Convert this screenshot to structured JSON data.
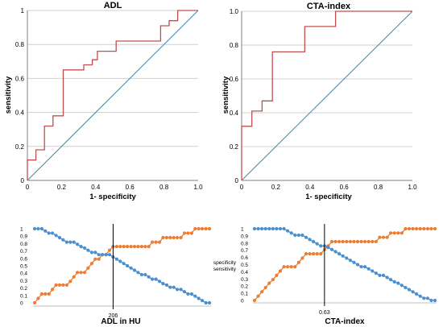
{
  "chart_data": [
    {
      "type": "line",
      "title": "ADL",
      "xlabel": "1- specificity",
      "ylabel": "sensitivity",
      "xlim": [
        0,
        1
      ],
      "ylim": [
        0,
        1
      ],
      "grid": "horizontal",
      "xticks": [
        "0",
        "0.2",
        "0.4",
        "0.6",
        "0.8",
        "1.0"
      ],
      "yticks": [
        "0",
        "0.2",
        "0.4",
        "0.6",
        "0.8",
        "1"
      ],
      "roc_points": [
        [
          0,
          0
        ],
        [
          0,
          0.12
        ],
        [
          0.05,
          0.12
        ],
        [
          0.05,
          0.18
        ],
        [
          0.1,
          0.18
        ],
        [
          0.1,
          0.32
        ],
        [
          0.15,
          0.32
        ],
        [
          0.15,
          0.38
        ],
        [
          0.21,
          0.38
        ],
        [
          0.21,
          0.65
        ],
        [
          0.33,
          0.65
        ],
        [
          0.33,
          0.68
        ],
        [
          0.38,
          0.68
        ],
        [
          0.38,
          0.71
        ],
        [
          0.41,
          0.71
        ],
        [
          0.41,
          0.76
        ],
        [
          0.52,
          0.76
        ],
        [
          0.52,
          0.82
        ],
        [
          0.78,
          0.82
        ],
        [
          0.78,
          0.91
        ],
        [
          0.83,
          0.91
        ],
        [
          0.83,
          0.94
        ],
        [
          0.88,
          0.94
        ],
        [
          0.88,
          1.0
        ],
        [
          1,
          1
        ]
      ],
      "reference_line": [
        [
          0,
          0
        ],
        [
          1,
          1
        ]
      ],
      "colors": {
        "roc": "#c0504d",
        "reference": "#4a8fb0",
        "grid": "#d0d0d0"
      }
    },
    {
      "type": "line",
      "title": "CTA-index",
      "xlabel": "1- specificity",
      "ylabel": "sensitivity",
      "xlim": [
        0,
        1
      ],
      "ylim": [
        0,
        1
      ],
      "grid": "horizontal",
      "xticks": [
        "0",
        "0.2",
        "0.4",
        "0.6",
        "0.8",
        "1.0"
      ],
      "yticks": [
        "0",
        "0.2",
        "0.4",
        "0.6",
        "0.8",
        "1.0"
      ],
      "roc_points": [
        [
          0,
          0
        ],
        [
          0,
          0.32
        ],
        [
          0.06,
          0.32
        ],
        [
          0.06,
          0.41
        ],
        [
          0.12,
          0.41
        ],
        [
          0.12,
          0.47
        ],
        [
          0.18,
          0.47
        ],
        [
          0.18,
          0.76
        ],
        [
          0.37,
          0.76
        ],
        [
          0.37,
          0.91
        ],
        [
          0.55,
          0.91
        ],
        [
          0.55,
          1.0
        ],
        [
          1,
          1
        ]
      ],
      "reference_line": [
        [
          0,
          0
        ],
        [
          1,
          1
        ]
      ],
      "colors": {
        "roc": "#c0504d",
        "reference": "#4a8fb0",
        "grid": "#d0d0d0"
      }
    },
    {
      "type": "line",
      "title": "",
      "xlabel": "ADL in HU",
      "ylabel": "",
      "ylim": [
        0,
        1
      ],
      "yticks": [
        "0",
        "0.1",
        "0.2",
        "0.3",
        "0.4",
        "0.5",
        "0.6",
        "0.7",
        "0.8",
        "0.9",
        "1"
      ],
      "cutoff_label": "206",
      "cutoff_index": 22,
      "n_points": 50,
      "series": [
        {
          "name": "specificity",
          "values": [
            0.0,
            0.06,
            0.12,
            0.12,
            0.12,
            0.18,
            0.24,
            0.24,
            0.24,
            0.24,
            0.29,
            0.35,
            0.41,
            0.41,
            0.41,
            0.47,
            0.53,
            0.59,
            0.59,
            0.65,
            0.65,
            0.71,
            0.76,
            0.76,
            0.76,
            0.76,
            0.76,
            0.76,
            0.76,
            0.76,
            0.76,
            0.76,
            0.76,
            0.82,
            0.82,
            0.82,
            0.88,
            0.88,
            0.88,
            0.88,
            0.88,
            0.88,
            0.94,
            0.94,
            0.94,
            1.0,
            1.0,
            1.0,
            1.0,
            1.0
          ]
        },
        {
          "name": "sensitivity",
          "values": [
            1.0,
            1.0,
            1.0,
            0.97,
            0.94,
            0.94,
            0.91,
            0.88,
            0.85,
            0.82,
            0.82,
            0.82,
            0.79,
            0.76,
            0.74,
            0.71,
            0.68,
            0.68,
            0.65,
            0.65,
            0.65,
            0.65,
            0.62,
            0.59,
            0.56,
            0.53,
            0.5,
            0.47,
            0.44,
            0.41,
            0.38,
            0.38,
            0.35,
            0.32,
            0.32,
            0.29,
            0.26,
            0.24,
            0.21,
            0.21,
            0.18,
            0.18,
            0.15,
            0.12,
            0.12,
            0.09,
            0.06,
            0.03,
            0.0,
            0.0
          ]
        }
      ],
      "colors": {
        "specificity": "#ed7d31",
        "sensitivity": "#4a8fd0",
        "cutoff": "#000000"
      }
    },
    {
      "type": "line",
      "title": "",
      "xlabel": "CTA-index",
      "ylabel": "",
      "ylim": [
        0,
        1
      ],
      "yticks": [
        "0",
        "0.1",
        "0.2",
        "0.3",
        "0.4",
        "0.5",
        "0.6",
        "0.7",
        "0.8",
        "0.9",
        "1"
      ],
      "cutoff_label": "0.63",
      "cutoff_index": 19,
      "n_points": 50,
      "series": [
        {
          "name": "specificity",
          "values": [
            0.0,
            0.06,
            0.12,
            0.18,
            0.24,
            0.29,
            0.35,
            0.41,
            0.47,
            0.47,
            0.47,
            0.47,
            0.53,
            0.59,
            0.65,
            0.65,
            0.65,
            0.65,
            0.65,
            0.71,
            0.76,
            0.82,
            0.82,
            0.82,
            0.82,
            0.82,
            0.82,
            0.82,
            0.82,
            0.82,
            0.82,
            0.82,
            0.82,
            0.82,
            0.88,
            0.88,
            0.88,
            0.94,
            0.94,
            0.94,
            0.94,
            1.0,
            1.0,
            1.0,
            1.0,
            1.0,
            1.0,
            1.0,
            1.0,
            1.0
          ]
        },
        {
          "name": "sensitivity",
          "values": [
            1.0,
            1.0,
            1.0,
            1.0,
            1.0,
            1.0,
            1.0,
            1.0,
            1.0,
            0.97,
            0.94,
            0.91,
            0.91,
            0.91,
            0.88,
            0.85,
            0.82,
            0.79,
            0.76,
            0.76,
            0.74,
            0.71,
            0.68,
            0.65,
            0.62,
            0.59,
            0.56,
            0.53,
            0.5,
            0.47,
            0.47,
            0.44,
            0.41,
            0.38,
            0.35,
            0.35,
            0.32,
            0.29,
            0.26,
            0.24,
            0.21,
            0.18,
            0.15,
            0.12,
            0.09,
            0.06,
            0.03,
            0.03,
            0.0,
            0.0
          ]
        }
      ],
      "colors": {
        "specificity": "#ed7d31",
        "sensitivity": "#4a8fd0",
        "cutoff": "#000000"
      }
    }
  ]
}
